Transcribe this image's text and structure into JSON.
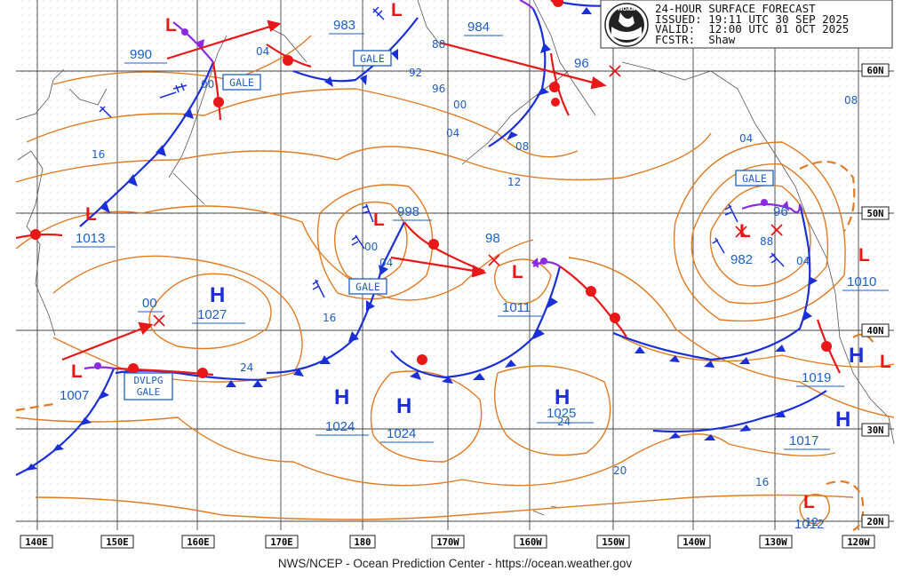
{
  "header": {
    "title": "24-HOUR SURFACE FORECAST",
    "issued": "ISSUED: 19:11 UTC 30 SEP 2025",
    "valid": "VALID:  12:00 UTC 01 OCT 2025",
    "forecaster": "FCSTR:  Shaw"
  },
  "logo": {
    "text": "NOAA"
  },
  "footer": "NWS/NCEP - Ocean Prediction Center - https://ocean.weather.gov",
  "longitude_labels": [
    "140E",
    "150E",
    "160E",
    "170E",
    "180",
    "170W",
    "160W",
    "150W",
    "140W",
    "130W",
    "120W"
  ],
  "latitude_labels": [
    "60N",
    "50N",
    "40N",
    "30N",
    "20N"
  ],
  "pressure_centers": [
    {
      "type": "L",
      "value": "990"
    },
    {
      "type": "L",
      "value": "983"
    },
    {
      "type": "L",
      "value": "984"
    },
    {
      "type": "L",
      "value": "96"
    },
    {
      "type": "L",
      "value": "1013"
    },
    {
      "type": "L",
      "value": "998"
    },
    {
      "type": "L",
      "value": "98"
    },
    {
      "type": "L",
      "value": "1011"
    },
    {
      "type": "H",
      "value": "1027"
    },
    {
      "type": "L",
      "value": "00"
    },
    {
      "type": "L",
      "value": "1007"
    },
    {
      "type": "H",
      "value": "1024"
    },
    {
      "type": "H",
      "value": "1024"
    },
    {
      "type": "H",
      "value": "1025"
    },
    {
      "type": "L",
      "value": "96"
    },
    {
      "type": "L",
      "value": "982"
    },
    {
      "type": "L",
      "value": "1010"
    },
    {
      "type": "H",
      "value": "1019"
    },
    {
      "type": "H",
      "value": "1017"
    },
    {
      "type": "L",
      "value": "1012"
    }
  ],
  "isobar_labels": [
    "04",
    "00",
    "88",
    "92",
    "96",
    "00",
    "04",
    "08",
    "16",
    "12",
    "08",
    "04",
    "88",
    "04",
    "00",
    "04",
    "16",
    "24",
    "24",
    "20",
    "16",
    "12"
  ],
  "warnings": [
    "GALE",
    "GALE",
    "GALE",
    "GALE",
    "DVLPG GALE"
  ],
  "colors": {
    "isobar": "#e07b23",
    "cold_front": "#1a2fd6",
    "warm_front": "#e81818",
    "occluded": "#8a2be2",
    "label": "#1f5fbf",
    "grid": "#333333",
    "land": "#555555"
  }
}
